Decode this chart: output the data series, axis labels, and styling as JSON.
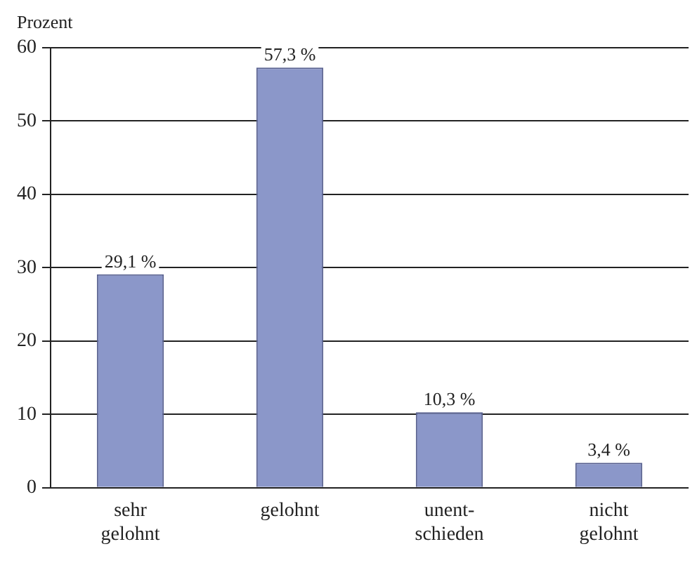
{
  "chart_data": {
    "type": "bar",
    "ylabel": "Prozent",
    "categories": [
      "sehr\ngelohnt",
      "gelohnt",
      "unent-\nschieden",
      "nicht\ngelohnt"
    ],
    "values": [
      29.1,
      57.3,
      10.3,
      3.4
    ],
    "color": "#8b97c9",
    "value_labels": [
      "29,1 %",
      "57,3 %",
      "10,3 %",
      "3,4 %"
    ],
    "ylim": [
      0,
      60
    ],
    "yticks": [
      0,
      10,
      20,
      30,
      40,
      50,
      60
    ],
    "grid": "y",
    "legend": false
  }
}
